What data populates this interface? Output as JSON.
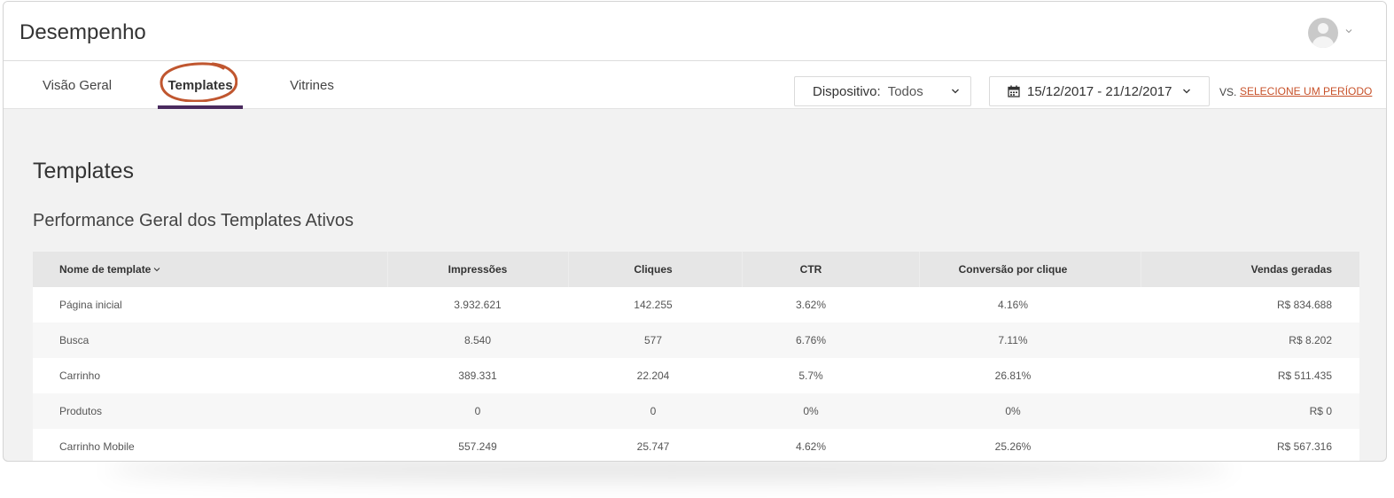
{
  "app": {
    "title": "Desempenho"
  },
  "nav": {
    "tabs": [
      {
        "label": "Visão Geral"
      },
      {
        "label": "Templates",
        "active": true
      },
      {
        "label": "Vitrines"
      }
    ]
  },
  "filters": {
    "device_label": "Dispositivo:",
    "device_value": "Todos",
    "date_range": "15/12/2017 - 21/12/2017",
    "vs_label": "VS.",
    "compare_link": "SELECIONE UM PERÍODO"
  },
  "page": {
    "title": "Templates",
    "section_title": "Performance Geral dos Templates Ativos"
  },
  "table": {
    "headers": [
      "Nome de template",
      "Impressões",
      "Cliques",
      "CTR",
      "Conversão por clique",
      "Vendas geradas"
    ],
    "rows": [
      [
        "Página inicial",
        "3.932.621",
        "142.255",
        "3.62%",
        "4.16%",
        "R$ 834.688"
      ],
      [
        "Busca",
        "8.540",
        "577",
        "6.76%",
        "7.11%",
        "R$ 8.202"
      ],
      [
        "Carrinho",
        "389.331",
        "22.204",
        "5.7%",
        "26.81%",
        "R$ 511.435"
      ],
      [
        "Produtos",
        "0",
        "0",
        "0%",
        "0%",
        "R$ 0"
      ],
      [
        "Carrinho Mobile",
        "557.249",
        "25.747",
        "4.62%",
        "25.26%",
        "R$ 567.316"
      ]
    ]
  },
  "colors": {
    "accent_underline": "#4a2a5e",
    "annotation_circle": "#c0562f",
    "link": "#c8522a"
  },
  "icons": [
    "user-avatar-icon",
    "chevron-down-icon",
    "calendar-icon",
    "sort-down-icon"
  ]
}
